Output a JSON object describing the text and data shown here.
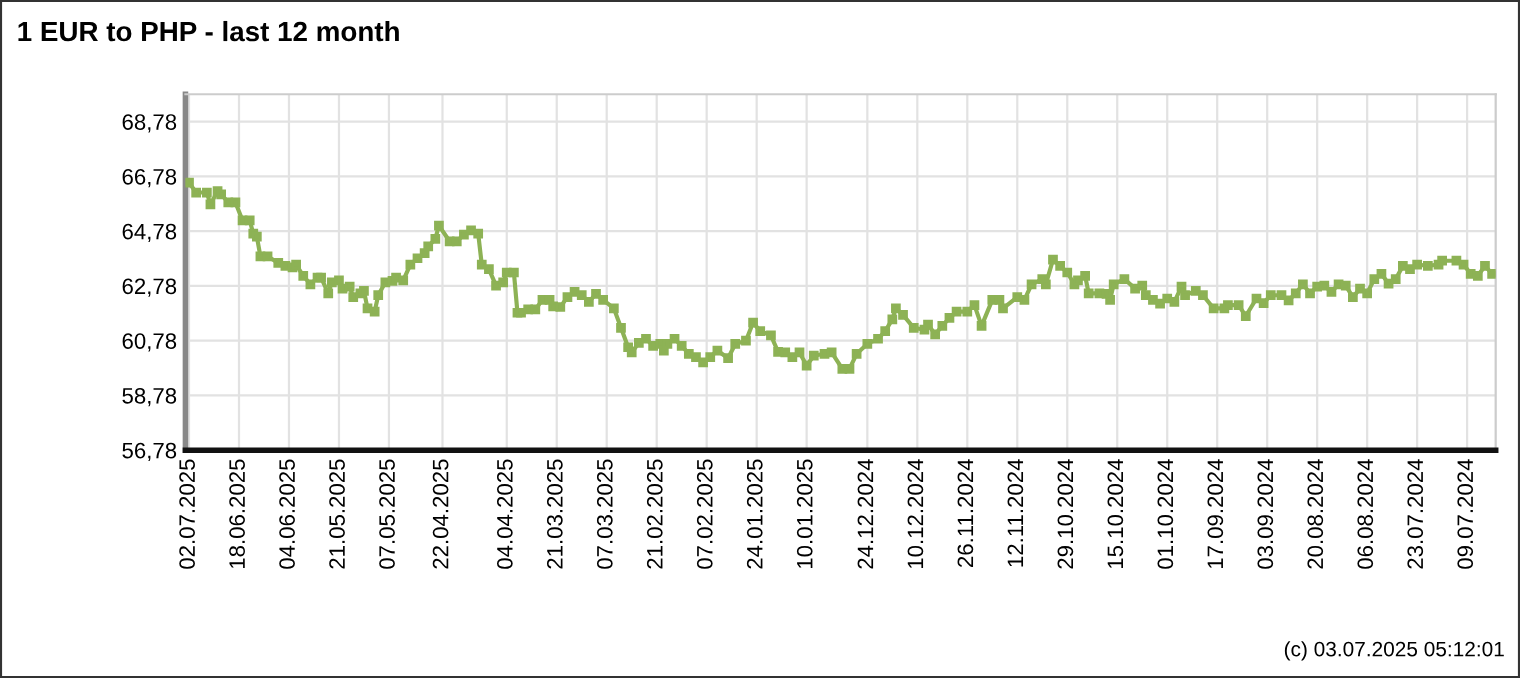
{
  "chart_data": {
    "type": "line",
    "title": "1 EUR to PHP - last 12 month",
    "annotations": [
      "(c) 03.07.2025 05:12:01"
    ],
    "series": [
      {
        "color": "#8db255",
        "x": [
          "2025-07-02",
          "2025-06-30",
          "2025-06-27",
          "2025-06-26",
          "2025-06-24",
          "2025-06-23",
          "2025-06-21",
          "2025-06-19",
          "2025-06-17",
          "2025-06-15",
          "2025-06-14",
          "2025-06-13",
          "2025-06-12",
          "2025-06-10",
          "2025-06-07",
          "2025-06-05",
          "2025-06-03",
          "2025-06-02",
          "2025-05-31",
          "2025-05-29",
          "2025-05-27",
          "2025-05-26",
          "2025-05-24",
          "2025-05-23",
          "2025-05-21",
          "2025-05-20",
          "2025-05-18",
          "2025-05-17",
          "2025-05-15",
          "2025-05-14",
          "2025-05-13",
          "2025-05-11",
          "2025-05-10",
          "2025-05-08",
          "2025-05-06",
          "2025-05-05",
          "2025-05-03",
          "2025-05-01",
          "2025-04-29",
          "2025-04-27",
          "2025-04-26",
          "2025-04-24",
          "2025-04-23",
          "2025-04-20",
          "2025-04-18",
          "2025-04-16",
          "2025-04-14",
          "2025-04-12",
          "2025-04-11",
          "2025-04-09",
          "2025-04-07",
          "2025-04-05",
          "2025-04-04",
          "2025-04-02",
          "2025-04-01",
          "2025-03-31",
          "2025-03-29",
          "2025-03-27",
          "2025-03-25",
          "2025-03-23",
          "2025-03-22",
          "2025-03-20",
          "2025-03-18",
          "2025-03-16",
          "2025-03-14",
          "2025-03-12",
          "2025-03-10",
          "2025-03-08",
          "2025-03-05",
          "2025-03-03",
          "2025-03-01",
          "2025-02-28",
          "2025-02-26",
          "2025-02-24",
          "2025-02-22",
          "2025-02-20",
          "2025-02-19",
          "2025-02-18",
          "2025-02-16",
          "2025-02-14",
          "2025-02-12",
          "2025-02-10",
          "2025-02-08",
          "2025-02-06",
          "2025-02-04",
          "2025-02-01",
          "2025-01-30",
          "2025-01-27",
          "2025-01-25",
          "2025-01-23",
          "2025-01-20",
          "2025-01-18",
          "2025-01-16",
          "2025-01-14",
          "2025-01-12",
          "2025-01-10",
          "2025-01-08",
          "2025-01-05",
          "2025-01-03",
          "2024-12-31",
          "2024-12-29",
          "2024-12-27",
          "2024-12-24",
          "2024-12-21",
          "2024-12-19",
          "2024-12-17",
          "2024-12-16",
          "2024-12-14",
          "2024-12-11",
          "2024-12-08",
          "2024-12-07",
          "2024-12-05",
          "2024-12-03",
          "2024-12-01",
          "2024-11-29",
          "2024-11-26",
          "2024-11-24",
          "2024-11-22",
          "2024-11-19",
          "2024-11-17",
          "2024-11-16",
          "2024-11-12",
          "2024-11-10",
          "2024-11-08",
          "2024-11-05",
          "2024-11-04",
          "2024-11-02",
          "2024-10-31",
          "2024-10-29",
          "2024-10-27",
          "2024-10-26",
          "2024-10-24",
          "2024-10-23",
          "2024-10-20",
          "2024-10-18",
          "2024-10-17",
          "2024-10-16",
          "2024-10-13",
          "2024-10-10",
          "2024-10-08",
          "2024-10-07",
          "2024-10-05",
          "2024-10-03",
          "2024-10-01",
          "2024-09-29",
          "2024-09-27",
          "2024-09-26",
          "2024-09-23",
          "2024-09-21",
          "2024-09-18",
          "2024-09-15",
          "2024-09-14",
          "2024-09-11",
          "2024-09-09",
          "2024-09-06",
          "2024-09-04",
          "2024-09-02",
          "2024-08-30",
          "2024-08-28",
          "2024-08-26",
          "2024-08-24",
          "2024-08-22",
          "2024-08-20",
          "2024-08-18",
          "2024-08-16",
          "2024-08-14",
          "2024-08-12",
          "2024-08-10",
          "2024-08-08",
          "2024-08-06",
          "2024-08-04",
          "2024-08-02",
          "2024-07-31",
          "2024-07-29",
          "2024-07-27",
          "2024-07-25",
          "2024-07-23",
          "2024-07-20",
          "2024-07-17",
          "2024-07-16",
          "2024-07-12",
          "2024-07-10",
          "2024-07-08",
          "2024-07-06",
          "2024-07-04",
          "2024-07-02"
        ],
        "values": [
          66.55,
          66.19,
          66.19,
          65.76,
          66.24,
          66.12,
          65.83,
          65.83,
          65.17,
          65.17,
          64.69,
          64.58,
          63.86,
          63.86,
          63.62,
          63.51,
          63.46,
          63.56,
          63.15,
          62.84,
          63.08,
          63.08,
          62.51,
          62.91,
          62.98,
          62.68,
          62.75,
          62.37,
          62.51,
          62.6,
          61.96,
          61.84,
          62.44,
          62.91,
          62.96,
          63.08,
          62.98,
          63.56,
          63.79,
          63.98,
          64.22,
          64.5,
          64.98,
          64.41,
          64.41,
          64.65,
          64.81,
          64.69,
          63.56,
          63.39,
          62.79,
          62.91,
          63.27,
          63.27,
          61.8,
          61.8,
          61.92,
          61.92,
          62.27,
          62.27,
          62.03,
          62.01,
          62.37,
          62.56,
          62.44,
          62.2,
          62.49,
          62.27,
          61.96,
          61.25,
          60.54,
          60.35,
          60.7,
          60.85,
          60.59,
          60.66,
          60.42,
          60.66,
          60.85,
          60.59,
          60.3,
          60.18,
          59.99,
          60.18,
          60.42,
          60.14,
          60.66,
          60.78,
          61.44,
          61.13,
          60.97,
          60.37,
          60.35,
          60.18,
          60.35,
          59.87,
          60.23,
          60.3,
          60.35,
          59.75,
          59.75,
          60.3,
          60.66,
          60.85,
          61.13,
          61.56,
          61.96,
          61.72,
          61.25,
          61.18,
          61.37,
          61.01,
          61.32,
          61.61,
          61.84,
          61.84,
          62.08,
          61.32,
          62.27,
          62.27,
          61.96,
          62.37,
          62.27,
          62.84,
          63.03,
          62.84,
          63.74,
          63.51,
          63.27,
          62.84,
          62.98,
          63.15,
          62.51,
          62.51,
          62.49,
          62.27,
          62.84,
          63.03,
          62.68,
          62.79,
          62.44,
          62.27,
          62.13,
          62.32,
          62.2,
          62.75,
          62.44,
          62.6,
          62.44,
          61.96,
          61.96,
          62.08,
          62.08,
          61.68,
          62.32,
          62.15,
          62.44,
          62.44,
          62.25,
          62.51,
          62.84,
          62.51,
          62.75,
          62.79,
          62.56,
          62.84,
          62.79,
          62.37,
          62.68,
          62.51,
          63.03,
          63.22,
          62.86,
          63.03,
          63.51,
          63.39,
          63.56,
          63.51,
          63.56,
          63.7,
          63.7,
          63.56,
          63.22,
          63.15,
          63.51,
          63.22
        ]
      }
    ],
    "xlim": [
      "2025-07-03",
      "2024-07-01"
    ],
    "xticks": [
      {
        "value": "2025-07-02",
        "label": "02.07.2025"
      },
      {
        "value": "2025-06-18",
        "label": "18.06.2025"
      },
      {
        "value": "2025-06-04",
        "label": "04.06.2025"
      },
      {
        "value": "2025-05-21",
        "label": "21.05.2025"
      },
      {
        "value": "2025-05-07",
        "label": "07.05.2025"
      },
      {
        "value": "2025-04-22",
        "label": "22.04.2025"
      },
      {
        "value": "2025-04-04",
        "label": "04.04.2025"
      },
      {
        "value": "2025-03-21",
        "label": "21.03.2025"
      },
      {
        "value": "2025-03-07",
        "label": "07.03.2025"
      },
      {
        "value": "2025-02-21",
        "label": "21.02.2025"
      },
      {
        "value": "2025-02-07",
        "label": "07.02.2025"
      },
      {
        "value": "2025-01-24",
        "label": "24.01.2025"
      },
      {
        "value": "2025-01-10",
        "label": "10.01.2025"
      },
      {
        "value": "2024-12-24",
        "label": "24.12.2024"
      },
      {
        "value": "2024-12-10",
        "label": "10.12.2024"
      },
      {
        "value": "2024-11-26",
        "label": "26.11.2024"
      },
      {
        "value": "2024-11-12",
        "label": "12.11.2024"
      },
      {
        "value": "2024-10-29",
        "label": "29.10.2024"
      },
      {
        "value": "2024-10-15",
        "label": "15.10.2024"
      },
      {
        "value": "2024-10-01",
        "label": "01.10.2024"
      },
      {
        "value": "2024-09-17",
        "label": "17.09.2024"
      },
      {
        "value": "2024-09-03",
        "label": "03.09.2024"
      },
      {
        "value": "2024-08-20",
        "label": "20.08.2024"
      },
      {
        "value": "2024-08-06",
        "label": "06.08.2024"
      },
      {
        "value": "2024-07-23",
        "label": "23.07.2024"
      },
      {
        "value": "2024-07-09",
        "label": "09.07.2024"
      }
    ],
    "ylim": [
      56.78,
      69.78
    ],
    "yticks": [
      {
        "value": 56.78,
        "label": "56,78"
      },
      {
        "value": 58.78,
        "label": "58,78"
      },
      {
        "value": 60.78,
        "label": "60,78"
      },
      {
        "value": 62.78,
        "label": "62,78"
      },
      {
        "value": 64.78,
        "label": "64,78"
      },
      {
        "value": 66.78,
        "label": "66,78"
      },
      {
        "value": 68.78,
        "label": "68,78"
      }
    ],
    "grid": true,
    "marker": "square",
    "line_style": "solid"
  }
}
